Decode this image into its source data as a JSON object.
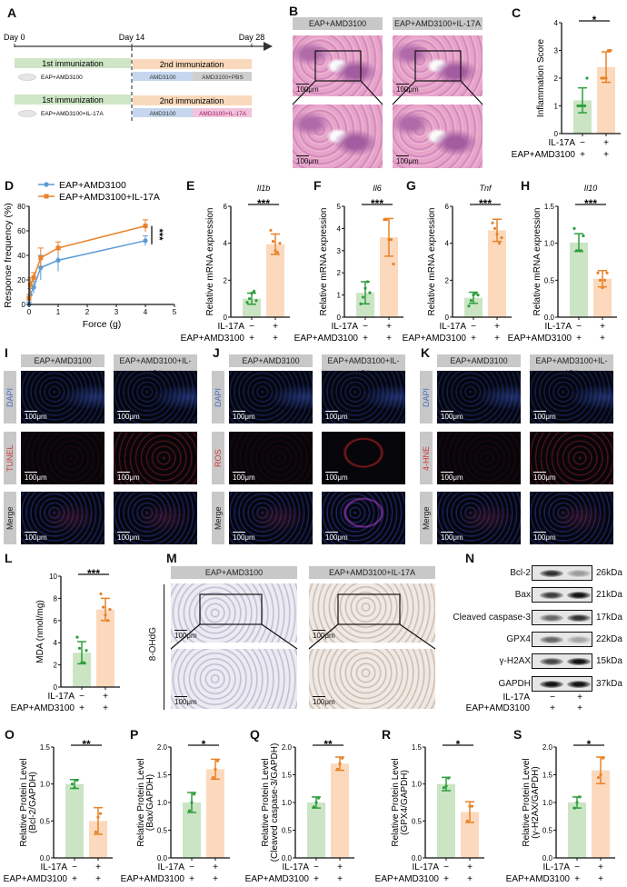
{
  "panel_letters": [
    "A",
    "B",
    "C",
    "D",
    "E",
    "F",
    "G",
    "H",
    "I",
    "J",
    "K",
    "L",
    "M",
    "N",
    "O",
    "P",
    "Q",
    "R",
    "S"
  ],
  "timeline": {
    "days": [
      "Day 0",
      "Day 14",
      "Day 28"
    ],
    "groups": [
      {
        "first": "1st immunization",
        "second": "2nd immunization",
        "name": "EAP+AMD3100",
        "phase1": "AMD3100",
        "phase2": "AMD3100+PBS"
      },
      {
        "first": "1st immunization",
        "second": "2nd immunization",
        "name": "EAP+AMD3100+IL-17A",
        "phase1": "AMD3100",
        "phase2": "AMD3100+IL-17A"
      }
    ],
    "colors": {
      "first": "#cfe6c6",
      "second": "#f9d9bb",
      "phase1": "#c5d6ee",
      "pbs": "#cfcfcf",
      "il17a": "#f1c3dc"
    }
  },
  "conditions": [
    "EAP+AMD3100",
    "EAP+AMD3100+IL-17A"
  ],
  "scale_bar": "100μm",
  "stain_rows": {
    "I": [
      "DAPI",
      "TUNEL",
      "Merge"
    ],
    "J": [
      "DAPI",
      "ROS",
      "Merge"
    ],
    "K": [
      "DAPI",
      "4-HNE",
      "Merge"
    ]
  },
  "ihc_label": "8-OHdG",
  "groups": {
    "il17a": "IL-17A",
    "eap": "EAP+AMD3100",
    "il17a_signs": [
      "−",
      "+"
    ],
    "eap_signs": [
      "+",
      "+"
    ]
  },
  "colors": {
    "ctrl_bar": "#cbe5c4",
    "ctrl_mark": "#2f9e3f",
    "trt_bar": "#fcd9bd",
    "trt_mark": "#e8822a",
    "line_ctrl": "#5b9bd5",
    "line_trt": "#e8822a"
  },
  "western": {
    "rows": [
      {
        "label": "Bcl-2",
        "kda": "26kDa",
        "intensity": [
          0.85,
          0.35
        ]
      },
      {
        "label": "Bax",
        "kda": "21kDa",
        "intensity": [
          0.8,
          1.0
        ]
      },
      {
        "label": "Cleaved caspase-3",
        "kda": "17kDa",
        "intensity": [
          0.6,
          0.85
        ]
      },
      {
        "label": "GPX4",
        "kda": "22kDa",
        "intensity": [
          0.6,
          0.3
        ]
      },
      {
        "label": "γ-H2AX",
        "kda": "15kDa",
        "intensity": [
          0.75,
          1.0
        ]
      },
      {
        "label": "GAPDH",
        "kda": "37kDa",
        "intensity": [
          1.0,
          1.0
        ]
      }
    ]
  },
  "chart_data": [
    {
      "id": "D",
      "type": "line",
      "xlabel": "Force (g)",
      "ylabel": "Response frequency (%)",
      "xlim": [
        0,
        5
      ],
      "ylim": [
        0,
        80
      ],
      "xticks": [
        0,
        1,
        2,
        3,
        4,
        5
      ],
      "yticks": [
        0,
        20,
        40,
        60,
        80
      ],
      "legend": "top-left",
      "sig": "***",
      "x": [
        0,
        0.04,
        0.16,
        0.4,
        1,
        4
      ],
      "series": [
        {
          "name": "EAP+AMD3100",
          "values": [
            0,
            8,
            14,
            30,
            36,
            52
          ],
          "error": [
            2,
            5,
            5,
            10,
            9,
            4
          ]
        },
        {
          "name": "EAP+AMD3100+IL-17A",
          "values": [
            5,
            16,
            22,
            38,
            46,
            64
          ],
          "error": [
            3,
            6,
            4,
            8,
            5,
            5
          ]
        }
      ]
    },
    {
      "id": "C",
      "type": "bar",
      "title": "",
      "ylabel": [
        "Inflammation Score"
      ],
      "ylim": [
        0,
        4
      ],
      "yticks": [
        "0",
        "1",
        "2",
        "3",
        "4"
      ],
      "means": [
        1.2,
        2.4
      ],
      "sd": [
        0.45,
        0.55
      ],
      "points": [
        [
          1,
          1,
          1,
          1,
          2
        ],
        [
          2,
          2,
          2,
          3,
          3
        ]
      ],
      "sig": "*"
    },
    {
      "id": "E",
      "type": "bar",
      "title": "Il1b",
      "ylabel": [
        "Relative mRNA expression"
      ],
      "ylim": [
        0,
        6
      ],
      "yticks": [
        "0",
        "2",
        "4",
        "6"
      ],
      "means": [
        1.0,
        3.95
      ],
      "sd": [
        0.3,
        0.55
      ],
      "points": [
        [
          0.8,
          1.0,
          1.3,
          1.4,
          0.9
        ],
        [
          4.7,
          4.1,
          3.6,
          3.5,
          4.0
        ]
      ],
      "sig": "***"
    },
    {
      "id": "F",
      "type": "bar",
      "title": "Il6",
      "ylabel": [
        "Relative mRNA expression"
      ],
      "ylim": [
        0,
        5
      ],
      "yticks": [
        "0",
        "1",
        "2",
        "3",
        "4",
        "5"
      ],
      "means": [
        1.1,
        3.6
      ],
      "sd": [
        0.5,
        0.85
      ],
      "points": [
        [
          0.6,
          0.9,
          1.3,
          1.6,
          1.1
        ],
        [
          4.4,
          4.4,
          3.5,
          3.5,
          2.4
        ]
      ],
      "sig": "***"
    },
    {
      "id": "G",
      "type": "bar",
      "title": "Tnf",
      "ylabel": [
        "Relative mRNA expression"
      ],
      "ylim": [
        0,
        6
      ],
      "yticks": [
        "0",
        "2",
        "4",
        "6"
      ],
      "means": [
        1.05,
        4.7
      ],
      "sd": [
        0.3,
        0.6
      ],
      "points": [
        [
          0.6,
          0.9,
          1.2,
          1.3,
          1.2
        ],
        [
          5.1,
          4.8,
          4.5,
          4.0,
          4.3
        ]
      ],
      "sig": "***"
    },
    {
      "id": "H",
      "type": "bar",
      "title": "Il10",
      "ylabel": [
        "Relative mRNA expression"
      ],
      "ylim": [
        0,
        1.5
      ],
      "yticks": [
        "0.0",
        "0.5",
        "1.0",
        "1.5"
      ],
      "means": [
        1.01,
        0.52
      ],
      "sd": [
        0.12,
        0.11
      ],
      "points": [
        [
          1.2,
          0.9,
          0.9,
          0.9,
          1.1
        ],
        [
          0.6,
          0.5,
          0.4,
          0.5,
          0.6
        ]
      ],
      "sig": "***"
    },
    {
      "id": "L",
      "type": "bar",
      "title": "",
      "ylabel": [
        "MDA (nmol/mg)"
      ],
      "ylim": [
        0,
        10
      ],
      "yticks": [
        "0",
        "2",
        "4",
        "6",
        "8",
        "10"
      ],
      "means": [
        3.1,
        7.0
      ],
      "sd": [
        1.0,
        1.0
      ],
      "points": [
        [
          4.5,
          3.5,
          2.2,
          2.2,
          3.3
        ],
        [
          8.4,
          7.2,
          6.5,
          6.0,
          7.0
        ]
      ],
      "sig": "***"
    },
    {
      "id": "O",
      "type": "bar",
      "title": "",
      "ylabel": [
        "Relative Protein Level",
        "(Bcl-2/GAPDH)"
      ],
      "ylim": [
        0,
        1.5
      ],
      "yticks": [
        "0.0",
        "0.5",
        "1.0",
        "1.5"
      ],
      "means": [
        1.0,
        0.5
      ],
      "sd": [
        0.06,
        0.18
      ],
      "points": [
        [
          1.0,
          0.95,
          1.05
        ],
        [
          0.35,
          0.55,
          0.6
        ]
      ],
      "sig": "**"
    },
    {
      "id": "P",
      "type": "bar",
      "title": "",
      "ylabel": [
        "Relative Protein Level",
        "(Bax/GAPDH)"
      ],
      "ylim": [
        0,
        2
      ],
      "yticks": [
        "0.0",
        "0.5",
        "1.0",
        "1.5",
        "2.0"
      ],
      "means": [
        1.0,
        1.6
      ],
      "sd": [
        0.18,
        0.18
      ],
      "points": [
        [
          0.85,
          1.0,
          1.15
        ],
        [
          1.45,
          1.6,
          1.75
        ]
      ],
      "sig": "*"
    },
    {
      "id": "Q",
      "type": "bar",
      "title": "",
      "ylabel": [
        "Relative Protein Level",
        "(Cleaved caspase-3/GAPDH)"
      ],
      "ylim": [
        0,
        2
      ],
      "yticks": [
        "0.0",
        "0.5",
        "1.0",
        "1.5",
        "2.0"
      ],
      "means": [
        1.0,
        1.7
      ],
      "sd": [
        0.1,
        0.12
      ],
      "points": [
        [
          0.92,
          1.0,
          1.08
        ],
        [
          1.6,
          1.7,
          1.8
        ]
      ],
      "sig": "**"
    },
    {
      "id": "R",
      "type": "bar",
      "title": "",
      "ylabel": [
        "Relative Protein Level",
        "(GPX4/GAPDH)"
      ],
      "ylim": [
        0,
        1.5
      ],
      "yticks": [
        "0.0",
        "0.5",
        "1.0",
        "1.5"
      ],
      "means": [
        1.0,
        0.62
      ],
      "sd": [
        0.09,
        0.14
      ],
      "points": [
        [
          0.95,
          0.97,
          1.08
        ],
        [
          0.5,
          0.7,
          0.7
        ]
      ],
      "sig": "*"
    },
    {
      "id": "S",
      "type": "bar",
      "title": "",
      "ylabel": [
        "Relative Protein Level",
        "(γ-H2AX/GAPDH)"
      ],
      "ylim": [
        0,
        2
      ],
      "yticks": [
        "0.0",
        "0.5",
        "1.0",
        "1.5",
        "2.0"
      ],
      "means": [
        1.0,
        1.58
      ],
      "sd": [
        0.1,
        0.24
      ],
      "points": [
        [
          0.9,
          1.0,
          1.1
        ],
        [
          1.45,
          1.5,
          1.8
        ]
      ],
      "sig": "*"
    }
  ]
}
